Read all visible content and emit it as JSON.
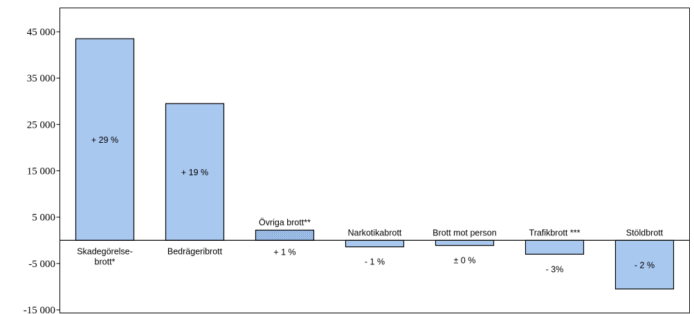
{
  "chart_data": {
    "type": "bar",
    "title": "",
    "xlabel": "",
    "ylabel": "",
    "ylim": [
      -15000,
      50000
    ],
    "y_ticks": [
      45000,
      35000,
      25000,
      15000,
      5000,
      -5000,
      -15000
    ],
    "y_tick_labels": [
      "45 000",
      "35 000",
      "25 000",
      "15 000",
      "5 000",
      "-5 000",
      "-15 000"
    ],
    "grid": false,
    "legend": "none",
    "bar_color": "#a9c8ef",
    "bar_edge_color": "#000000",
    "categories": [
      "Skadegörelse- brott*",
      "Bedrägeribrott",
      "Övriga brott**",
      "Narkotikabrott",
      "Brott mot person",
      "Trafikbrott ***",
      "Stöldbrott"
    ],
    "category_lines": [
      [
        "Skadegörelse-",
        "brott*"
      ],
      [
        "Bedrägeribrott"
      ],
      [
        "Övriga brott**"
      ],
      [
        "Narkotikabrott"
      ],
      [
        "Brott mot person"
      ],
      [
        "Trafikbrott ***"
      ],
      [
        "Stöldbrott"
      ]
    ],
    "values": [
      43500,
      29500,
      2200,
      -1400,
      -1100,
      -3000,
      -10500
    ],
    "annotations": [
      "+ 29  %",
      "+ 19 %",
      "+ 1 %",
      "- 1 %",
      "± 0 %",
      "- 3%",
      "- 2 %"
    ]
  }
}
